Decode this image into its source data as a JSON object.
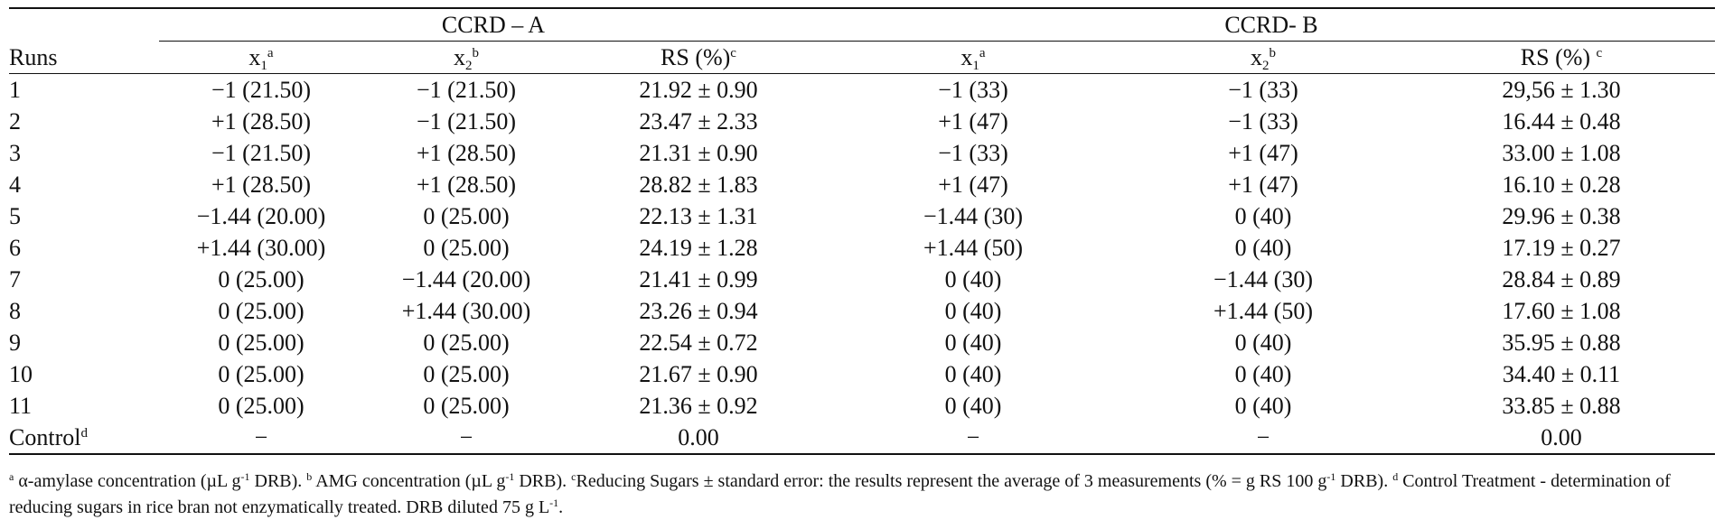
{
  "table": {
    "group_a": "CCRD – A",
    "group_b": "CCRD- B",
    "columns": {
      "runs": "Runs",
      "x1": "x",
      "x1_sub": "1",
      "x1_sup": "a",
      "x2": "x",
      "x2_sub": "2",
      "x2_sup": "b",
      "rs": "RS (%)",
      "rs_sup": "c"
    },
    "rows": [
      {
        "run": "1",
        "a_x1": "−1 (21.50)",
        "a_x2": "−1 (21.50)",
        "a_rs": "21.92 ± 0.90",
        "b_x1": "−1 (33)",
        "b_x2": "−1 (33)",
        "b_rs": "29,56 ± 1.30"
      },
      {
        "run": "2",
        "a_x1": "+1 (28.50)",
        "a_x2": "−1 (21.50)",
        "a_rs": "23.47 ± 2.33",
        "b_x1": "+1 (47)",
        "b_x2": "−1 (33)",
        "b_rs": "16.44 ± 0.48"
      },
      {
        "run": "3",
        "a_x1": "−1 (21.50)",
        "a_x2": "+1 (28.50)",
        "a_rs": "21.31 ± 0.90",
        "b_x1": "−1 (33)",
        "b_x2": "+1 (47)",
        "b_rs": "33.00 ± 1.08"
      },
      {
        "run": "4",
        "a_x1": "+1 (28.50)",
        "a_x2": "+1 (28.50)",
        "a_rs": "28.82 ± 1.83",
        "b_x1": "+1 (47)",
        "b_x2": "+1 (47)",
        "b_rs": "16.10 ± 0.28"
      },
      {
        "run": "5",
        "a_x1": "−1.44 (20.00)",
        "a_x2": "0 (25.00)",
        "a_rs": "22.13 ± 1.31",
        "b_x1": "−1.44 (30)",
        "b_x2": "0 (40)",
        "b_rs": "29.96 ± 0.38"
      },
      {
        "run": "6",
        "a_x1": "+1.44 (30.00)",
        "a_x2": "0 (25.00)",
        "a_rs": "24.19 ± 1.28",
        "b_x1": "+1.44 (50)",
        "b_x2": "0 (40)",
        "b_rs": "17.19 ± 0.27"
      },
      {
        "run": "7",
        "a_x1": "0 (25.00)",
        "a_x2": "−1.44 (20.00)",
        "a_rs": "21.41 ± 0.99",
        "b_x1": "0 (40)",
        "b_x2": "−1.44 (30)",
        "b_rs": "28.84 ± 0.89"
      },
      {
        "run": "8",
        "a_x1": "0 (25.00)",
        "a_x2": "+1.44 (30.00)",
        "a_rs": "23.26 ± 0.94",
        "b_x1": "0 (40)",
        "b_x2": "+1.44 (50)",
        "b_rs": "17.60 ± 1.08"
      },
      {
        "run": "9",
        "a_x1": "0 (25.00)",
        "a_x2": "0 (25.00)",
        "a_rs": "22.54 ± 0.72",
        "b_x1": "0 (40)",
        "b_x2": "0 (40)",
        "b_rs": "35.95 ± 0.88"
      },
      {
        "run": "10",
        "a_x1": "0 (25.00)",
        "a_x2": "0 (25.00)",
        "a_rs": "21.67 ± 0.90",
        "b_x1": "0 (40)",
        "b_x2": "0 (40)",
        "b_rs": "34.40 ± 0.11"
      },
      {
        "run": "11",
        "a_x1": "0 (25.00)",
        "a_x2": "0 (25.00)",
        "a_rs": "21.36 ± 0.92",
        "b_x1": "0 (40)",
        "b_x2": "0 (40)",
        "b_rs": "33.85 ± 0.88"
      }
    ],
    "control": {
      "run": "Control",
      "run_sup": "d",
      "a_x1": "−",
      "a_x2": "−",
      "a_rs": "0.00",
      "b_x1": "−",
      "b_x2": "−",
      "b_rs": "0.00"
    }
  },
  "notes": {
    "a_mark": "a",
    "a_text_1": " α-amylase concentration (µL g",
    "a_exp": "-1",
    "a_text_2": " DRB). ",
    "b_mark": "b",
    "b_text_1": " AMG concentration (µL g",
    "b_exp": "-1",
    "b_text_2": " DRB). ",
    "c_mark": "c",
    "c_text_1": "Reducing Sugars ± standard error: the results represent the average of 3 measurements (% = g RS 100 g",
    "c_exp": "-1",
    "c_text_2": " DRB). ",
    "d_mark": "d",
    "d_text_1": " Control Treatment - determination of reducing sugars in rice bran not enzymatically treated. DRB diluted 75 g L",
    "d_exp": "-1",
    "d_text_2": "."
  }
}
